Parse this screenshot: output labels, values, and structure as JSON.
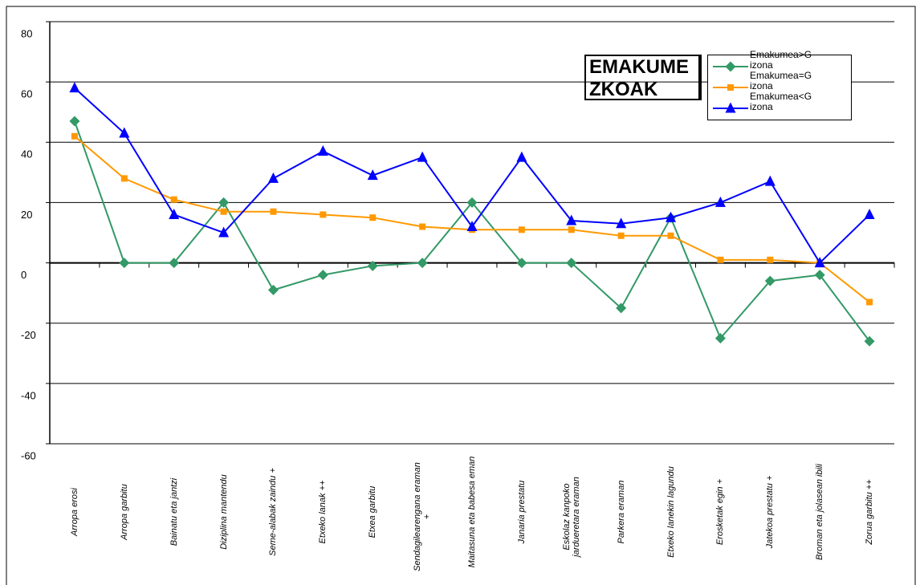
{
  "chart_data": {
    "type": "line",
    "title": "EMAKUMEZKOAK",
    "categories": [
      "Arropa erosi",
      "Arropa garbitu",
      "Bainatu eta jantzi",
      "Diziplina mantendu",
      "Seme-alabak zaindu +",
      "Etxeko lanak ++",
      "Etxea garbitu",
      "Sendagilearengana eraman +",
      "Maitasuna eta babesa eman",
      "Janaria prestatu",
      "Eskolaz kanpoko jardueretara eraman",
      "Parkera eraman",
      "Etxeko lanekin lagundu",
      "Erosketak egin +",
      "Jatekoa prestatu +",
      "Broman eta jolasean ibili",
      "Zorua garbitu ++"
    ],
    "series": [
      {
        "name": "Emakumea>Gizona",
        "color": "#339966",
        "marker": "diamond",
        "values": [
          47,
          0,
          0,
          20,
          -9,
          -4,
          -1,
          0,
          20,
          0,
          0,
          -15,
          15,
          -25,
          -6,
          -4,
          -26
        ]
      },
      {
        "name": "Emakumea=Gizona",
        "color": "#ff9900",
        "marker": "square",
        "values": [
          42,
          28,
          21,
          17,
          17,
          16,
          15,
          12,
          11,
          11,
          11,
          9,
          9,
          1,
          1,
          0,
          -13
        ]
      },
      {
        "name": "Emakumea<Gizona",
        "color": "#0000ff",
        "marker": "triangle",
        "values": [
          58,
          43,
          16,
          10,
          28,
          37,
          29,
          35,
          12,
          35,
          14,
          13,
          15,
          20,
          27,
          0,
          16
        ]
      }
    ],
    "ylim": [
      -60,
      80
    ],
    "yticks": [
      -60,
      -40,
      -20,
      0,
      20,
      40,
      60,
      80
    ],
    "grid": true,
    "legend": "top-right"
  }
}
